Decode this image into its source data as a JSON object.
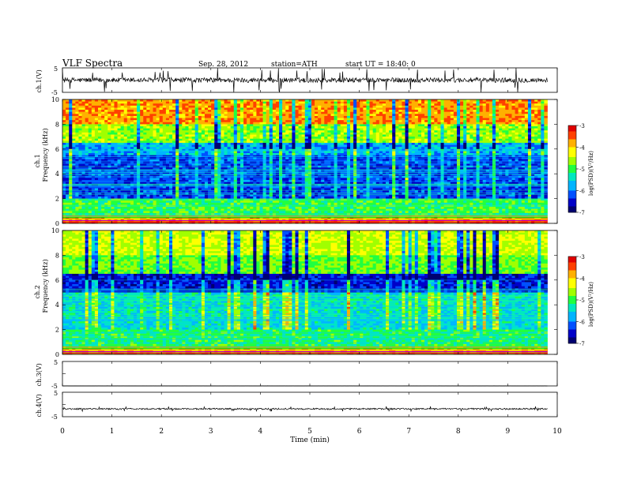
{
  "header": {
    "title": "VLF  Spectra",
    "date": "Sep. 28, 2012",
    "station": "station=ATH",
    "start": "start  UT  =    18:40: 0"
  },
  "colors": {
    "colormap": [
      "#000070",
      "#0000c8",
      "#0050ff",
      "#00b4ff",
      "#00e8c0",
      "#20ff40",
      "#a0ff00",
      "#ffff00",
      "#ffb000",
      "#ff4000",
      "#e00000",
      "#ffffff"
    ]
  },
  "chart_data": [
    {
      "id": "ch1",
      "type": "line",
      "ylabel": "ch.1(V)",
      "ylim": [
        -5,
        5
      ],
      "yticks": [
        "5",
        "-5"
      ],
      "xlim": [
        0,
        10
      ],
      "description_series": {
        "baseline": 0,
        "noise_amplitude": 1.0,
        "spike_max": 5
      }
    },
    {
      "id": "ch1_spectrogram",
      "type": "heatmap",
      "ylabel": "Frequency  (kHz)",
      "channel_label": "ch.1",
      "ylim": [
        0,
        10
      ],
      "yticks": [
        "0",
        "2",
        "4",
        "6",
        "8",
        "10"
      ],
      "xlim": [
        0,
        10
      ],
      "colorbar": {
        "label": "log(PSD)(V²/Hz)",
        "range": [
          -7,
          -3
        ],
        "ticks": [
          "-3",
          "-4",
          "-5",
          "-6",
          "-7"
        ]
      },
      "bands": [
        {
          "fmin": 0,
          "fmax": 0.5,
          "level": -3.5
        },
        {
          "fmin": 0.5,
          "fmax": 2.0,
          "level": -5.0
        },
        {
          "fmin": 2.0,
          "fmax": 5.5,
          "level": -6.3
        },
        {
          "fmin": 5.5,
          "fmax": 6.5,
          "level": -5.8
        },
        {
          "fmin": 6.5,
          "fmax": 8.0,
          "level": -4.6
        },
        {
          "fmin": 8.0,
          "fmax": 10.0,
          "level": -3.7
        }
      ]
    },
    {
      "id": "ch2_spectrogram",
      "type": "heatmap",
      "ylabel": "Frequency  (kHz)",
      "channel_label": "ch.2",
      "ylim": [
        0,
        10
      ],
      "yticks": [
        "0",
        "2",
        "4",
        "6",
        "8",
        "10"
      ],
      "xlim": [
        0,
        10
      ],
      "colorbar": {
        "label": "log(PSD)(V²/Hz)",
        "range": [
          -7,
          -3
        ],
        "ticks": [
          "-3",
          "-4",
          "-5",
          "-6",
          "-7"
        ]
      },
      "bands": [
        {
          "fmin": 0,
          "fmax": 0.5,
          "level": -3.6
        },
        {
          "fmin": 0.5,
          "fmax": 2.0,
          "level": -5.1
        },
        {
          "fmin": 2.0,
          "fmax": 5.0,
          "level": -5.5
        },
        {
          "fmin": 5.0,
          "fmax": 6.5,
          "level": -6.5
        },
        {
          "fmin": 6.5,
          "fmax": 8.0,
          "level": -4.8
        },
        {
          "fmin": 8.0,
          "fmax": 10.0,
          "level": -4.4
        }
      ]
    },
    {
      "id": "ch3",
      "type": "line",
      "ylabel": "ch.3(V)",
      "ylim": [
        -5,
        5
      ],
      "yticks": [
        "5",
        "-5"
      ],
      "xlim": [
        0,
        10
      ],
      "description_series": {
        "baseline": -5,
        "noise_amplitude": 0.05,
        "spike_max": 0
      }
    },
    {
      "id": "ch4",
      "type": "line",
      "ylabel": "ch.4(V)",
      "ylim": [
        -5,
        5
      ],
      "yticks": [
        "5",
        "-5"
      ],
      "xlim": [
        0,
        10
      ],
      "description_series": {
        "baseline": -1.8,
        "noise_amplitude": 0.3,
        "spike_max": 1
      }
    }
  ],
  "xaxis": {
    "label": "Time  (min)",
    "ticks": [
      "0",
      "1",
      "2",
      "3",
      "4",
      "5",
      "6",
      "7",
      "8",
      "9",
      "10"
    ],
    "data_end": 9.8
  }
}
